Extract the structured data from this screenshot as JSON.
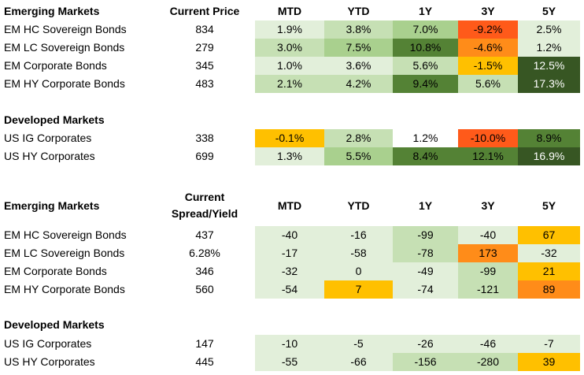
{
  "colors": {
    "pale": "#e2efda",
    "light": "#c6e0b4",
    "mid": "#a9d08e",
    "dark": "#548235",
    "darkest": "#375623",
    "yellow": "#ffc000",
    "orange": "#ff8c19",
    "red": "#ff5a1a",
    "white": "#ffffff"
  },
  "sections": [
    {
      "title": "Emerging Markets",
      "header2": "Current Price",
      "cols": [
        "MTD",
        "YTD",
        "1Y",
        "3Y",
        "5Y"
      ],
      "rows": [
        {
          "name": "EM HC Sovereign Bonds",
          "val": "834",
          "cells": [
            {
              "v": "1.9%",
              "c": "pale"
            },
            {
              "v": "3.8%",
              "c": "light"
            },
            {
              "v": "7.0%",
              "c": "mid"
            },
            {
              "v": "-9.2%",
              "c": "red"
            },
            {
              "v": "2.5%",
              "c": "pale"
            }
          ]
        },
        {
          "name": "EM LC Sovereign Bonds",
          "val": "279",
          "cells": [
            {
              "v": "3.0%",
              "c": "light"
            },
            {
              "v": "7.5%",
              "c": "mid"
            },
            {
              "v": "10.8%",
              "c": "dark"
            },
            {
              "v": "-4.6%",
              "c": "orange"
            },
            {
              "v": "1.2%",
              "c": "pale"
            }
          ]
        },
        {
          "name": "EM Corporate Bonds",
          "val": "345",
          "cells": [
            {
              "v": "1.0%",
              "c": "pale"
            },
            {
              "v": "3.6%",
              "c": "pale"
            },
            {
              "v": "5.6%",
              "c": "light"
            },
            {
              "v": "-1.5%",
              "c": "yellow"
            },
            {
              "v": "12.5%",
              "c": "darkest"
            }
          ]
        },
        {
          "name": "EM HY Corporate Bonds",
          "val": "483",
          "cells": [
            {
              "v": "2.1%",
              "c": "light"
            },
            {
              "v": "4.2%",
              "c": "light"
            },
            {
              "v": "9.4%",
              "c": "dark"
            },
            {
              "v": "5.6%",
              "c": "light"
            },
            {
              "v": "17.3%",
              "c": "darkest"
            }
          ]
        }
      ]
    },
    {
      "title": "Developed Markets",
      "rows": [
        {
          "name": "US IG Corporates",
          "val": "338",
          "cells": [
            {
              "v": "-0.1%",
              "c": "yellow"
            },
            {
              "v": "2.8%",
              "c": "light"
            },
            {
              "v": "1.2%",
              "c": "white"
            },
            {
              "v": "-10.0%",
              "c": "red"
            },
            {
              "v": "8.9%",
              "c": "dark"
            }
          ]
        },
        {
          "name": "US HY Corporates",
          "val": "699",
          "cells": [
            {
              "v": "1.3%",
              "c": "pale"
            },
            {
              "v": "5.5%",
              "c": "mid"
            },
            {
              "v": "8.4%",
              "c": "dark"
            },
            {
              "v": "12.1%",
              "c": "dark"
            },
            {
              "v": "16.9%",
              "c": "darkest"
            }
          ]
        }
      ]
    },
    {
      "title": "Emerging Markets",
      "header2": "Current\nSpread/Yield",
      "cols": [
        "MTD",
        "YTD",
        "1Y",
        "3Y",
        "5Y"
      ],
      "rows": [
        {
          "name": "EM HC Sovereign Bonds",
          "val": "437",
          "cells": [
            {
              "v": "-40",
              "c": "pale"
            },
            {
              "v": "-16",
              "c": "pale"
            },
            {
              "v": "-99",
              "c": "light"
            },
            {
              "v": "-40",
              "c": "pale"
            },
            {
              "v": "67",
              "c": "yellow"
            }
          ]
        },
        {
          "name": "EM LC Sovereign Bonds",
          "val": "6.28%",
          "cells": [
            {
              "v": "-17",
              "c": "pale"
            },
            {
              "v": "-58",
              "c": "pale"
            },
            {
              "v": "-78",
              "c": "light"
            },
            {
              "v": "173",
              "c": "orange"
            },
            {
              "v": "-32",
              "c": "pale"
            }
          ]
        },
        {
          "name": "EM Corporate Bonds",
          "val": "346",
          "cells": [
            {
              "v": "-32",
              "c": "pale"
            },
            {
              "v": "0",
              "c": "pale"
            },
            {
              "v": "-49",
              "c": "pale"
            },
            {
              "v": "-99",
              "c": "light"
            },
            {
              "v": "21",
              "c": "yellow"
            }
          ]
        },
        {
          "name": "EM HY Corporate Bonds",
          "val": "560",
          "cells": [
            {
              "v": "-54",
              "c": "pale"
            },
            {
              "v": "7",
              "c": "yellow"
            },
            {
              "v": "-74",
              "c": "pale"
            },
            {
              "v": "-121",
              "c": "light"
            },
            {
              "v": "89",
              "c": "orange"
            }
          ]
        }
      ]
    },
    {
      "title": "Developed Markets",
      "rows": [
        {
          "name": "US IG Corporates",
          "val": "147",
          "cells": [
            {
              "v": "-10",
              "c": "pale"
            },
            {
              "v": "-5",
              "c": "pale"
            },
            {
              "v": "-26",
              "c": "pale"
            },
            {
              "v": "-46",
              "c": "pale"
            },
            {
              "v": "-7",
              "c": "pale"
            }
          ]
        },
        {
          "name": "US HY Corporates",
          "val": "445",
          "cells": [
            {
              "v": "-55",
              "c": "pale"
            },
            {
              "v": "-66",
              "c": "pale"
            },
            {
              "v": "-156",
              "c": "light"
            },
            {
              "v": "-280",
              "c": "light"
            },
            {
              "v": "39",
              "c": "yellow"
            }
          ]
        }
      ]
    }
  ]
}
